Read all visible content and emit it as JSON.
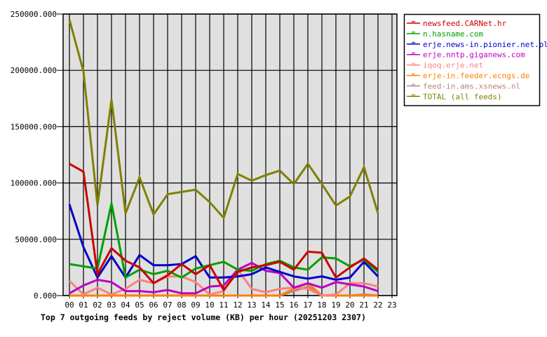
{
  "chart_data": {
    "type": "line",
    "title": "Top 7 outgoing feeds by reject volume (KB) per hour (20251203 2307)",
    "xlabel": "",
    "ylabel": "",
    "categories": [
      "00",
      "01",
      "02",
      "03",
      "04",
      "05",
      "06",
      "07",
      "08",
      "09",
      "10",
      "11",
      "12",
      "13",
      "14",
      "15",
      "16",
      "17",
      "18",
      "19",
      "20",
      "21",
      "22",
      "23"
    ],
    "y_ticks": [
      "0.000",
      "50000.000",
      "100000.000",
      "150000.000",
      "200000.000",
      "250000.000"
    ],
    "ylim": [
      0,
      250000
    ],
    "grid": true,
    "legend_position": "right",
    "series": [
      {
        "name": "newsfeed.CARNet.hr",
        "color": "#cc0000",
        "values": [
          117000,
          110000,
          19000,
          42000,
          31000,
          25000,
          11000,
          18000,
          28000,
          19000,
          27000,
          5000,
          21000,
          25000,
          27000,
          30000,
          23000,
          39000,
          38000,
          16000,
          25000,
          33000,
          23000
        ]
      },
      {
        "name": "n.hasname.com",
        "color": "#00a000",
        "values": [
          28000,
          26000,
          24000,
          82000,
          16000,
          23000,
          19000,
          22000,
          16000,
          24000,
          27000,
          30000,
          23000,
          22000,
          28000,
          31000,
          25000,
          23000,
          34000,
          33000,
          26000,
          32000,
          21000
        ]
      },
      {
        "name": "erje.news-in.pionier.net.pl",
        "color": "#0000cc",
        "values": [
          81000,
          43000,
          16000,
          35000,
          16000,
          36000,
          27000,
          27000,
          28000,
          35000,
          16000,
          16000,
          17000,
          19000,
          25000,
          21000,
          17000,
          15000,
          17000,
          14000,
          16000,
          30000,
          17000
        ]
      },
      {
        "name": "erje.nntp.giganews.com",
        "color": "#c000c0",
        "values": [
          2000,
          9000,
          14000,
          12000,
          4000,
          4000,
          3000,
          5000,
          2000,
          2000,
          8000,
          9000,
          23000,
          29000,
          22000,
          20000,
          7000,
          11000,
          7000,
          12000,
          10000,
          8000,
          4000
        ]
      },
      {
        "name": "iqoq.erje.net",
        "color": "#ff8080",
        "values": [
          13000,
          1000,
          7000,
          1000,
          6000,
          14000,
          11000,
          17000,
          17000,
          12000,
          1000,
          4000,
          23000,
          6000,
          3000,
          6000,
          7000,
          6000,
          0,
          1000,
          11000,
          11000,
          8000
        ]
      },
      {
        "name": "erje-in.feeder.ecngs.de",
        "color": "#ff8000",
        "values": [
          0,
          0,
          0,
          0,
          0,
          0,
          0,
          0,
          0,
          0,
          0,
          0,
          0,
          0,
          0,
          0,
          6000,
          11000,
          0,
          0,
          0,
          0,
          0
        ]
      },
      {
        "name": "feed-in.ams.xsnews.nl",
        "color": "#c08080",
        "values": [
          0,
          0,
          0,
          0,
          0,
          0,
          0,
          0,
          0,
          0,
          0,
          0,
          0,
          0,
          0,
          0,
          4000,
          8000,
          0,
          0,
          0,
          1000,
          0
        ]
      },
      {
        "name": "TOTAL (all feeds)",
        "color": "#808000",
        "values": [
          245000,
          199000,
          80000,
          174000,
          73000,
          105000,
          72000,
          90000,
          92000,
          94000,
          83000,
          69000,
          108000,
          102000,
          107000,
          111000,
          99000,
          117000,
          99000,
          80000,
          88000,
          114000,
          73000
        ]
      }
    ]
  },
  "colors": {
    "plot_background": "#e0e0e0",
    "grid": "#000000"
  }
}
